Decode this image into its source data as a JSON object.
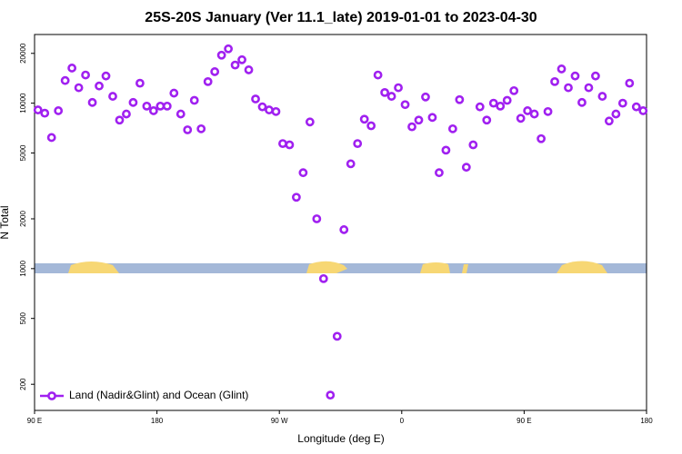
{
  "chart_data": {
    "type": "scatter",
    "title": "25S-20S January (Ver 11.1_late)   2019-01-01 to 2023-04-30",
    "x_label": "Longitude (deg E)",
    "y_label": "N Total",
    "log_y": true,
    "legend": "bottom left",
    "xlim": [
      90,
      540
    ],
    "xticks": [
      {
        "value": 90,
        "label": "90 E"
      },
      180,
      {
        "value": 270,
        "label": "90 W"
      },
      {
        "value": 360,
        "label": "0"
      },
      {
        "value": 450,
        "label": "90 E"
      },
      {
        "value": 540,
        "label": "180"
      }
    ],
    "ylim": [
      139,
      26000
    ],
    "yticks": [
      200,
      500,
      1000,
      2000,
      5000,
      10000,
      20000
    ],
    "series": [
      {
        "name": "Land (Nadir&Glint) and Ocean (Glint)",
        "color": "#a020f0",
        "x": [
          92.5,
          97.5,
          102.5,
          107.5,
          112.5,
          117.5,
          122.5,
          127.5,
          132.5,
          137.5,
          142.5,
          147.5,
          152.5,
          157.5,
          162.5,
          167.5,
          172.5,
          177.5,
          182.5,
          187.5,
          192.5,
          197.5,
          202.5,
          207.5,
          212.5,
          217.5,
          222.5,
          227.5,
          232.5,
          237.5,
          242.5,
          247.5,
          252.5,
          257.5,
          262.5,
          267.5,
          272.5,
          277.5,
          282.5,
          287.5,
          292.5,
          297.5,
          302.5,
          307.5,
          312.5,
          317.5,
          322.5,
          327.5,
          332.5,
          337.5,
          342.5,
          347.5,
          352.5,
          357.5,
          362.5,
          367.5,
          372.5,
          377.5,
          382.5,
          387.5,
          392.5,
          397.5,
          402.5,
          407.5,
          412.5,
          417.5,
          422.5,
          427.5,
          432.5,
          437.5,
          442.5,
          447.5,
          452.5,
          457.5,
          462.5,
          467.5,
          472.5,
          477.5,
          482.5,
          487.5,
          492.5,
          497.5,
          502.5,
          507.5,
          512.5,
          517.5,
          522.5,
          527.5,
          532.5,
          537.5
        ],
        "values": [
          9100,
          8700,
          6200,
          9000,
          13700,
          16300,
          12400,
          14800,
          10100,
          12700,
          14600,
          11000,
          7900,
          8600,
          10100,
          13200,
          9600,
          9000,
          9600,
          9600,
          11500,
          8600,
          6900,
          10400,
          7000,
          13500,
          15500,
          19500,
          21300,
          17000,
          18300,
          15900,
          10600,
          9500,
          9100,
          8900,
          5700,
          5600,
          2700,
          3800,
          7700,
          2000,
          870,
          172,
          390,
          1720,
          4300,
          5700,
          8000,
          7300,
          14800,
          11600,
          11000,
          12400,
          9800,
          7200,
          7900,
          10900,
          8200,
          3800,
          5200,
          7000,
          10500,
          4100,
          5600,
          9500,
          7900,
          10000,
          9600,
          10400,
          11900,
          8100,
          9000,
          8600,
          6100,
          8900,
          13500,
          16100,
          12400,
          14600,
          10100,
          12400,
          14600,
          11000,
          7800,
          8600,
          10000,
          13200,
          9500,
          9000
        ]
      }
    ]
  }
}
